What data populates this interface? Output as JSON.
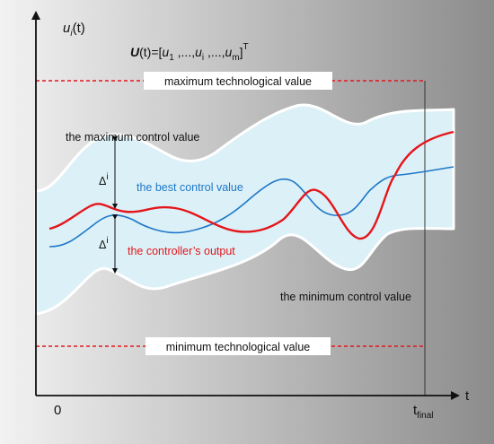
{
  "colors": {
    "background_gradient": [
      "#8c8c8c",
      "#f2f2f2"
    ],
    "band_fill": "#dcf0f7",
    "band_edge": "#ffffff",
    "limit_line": "#e4161b",
    "best_control": "#1f78c8",
    "controller_output": "#e4161b"
  },
  "axes": {
    "y_label_main": "u",
    "y_label_sub": "i",
    "y_label_arg": "(t)",
    "x_label": "t",
    "origin_label": "0",
    "t_final_main": "t",
    "t_final_sub": "final"
  },
  "equation": {
    "lhs_bold": "U",
    "lhs_rest": "(t)=[",
    "u1": "u",
    "u1_sub": "1",
    "sep1": " ,...,",
    "ui": "u",
    "ui_sub": "i",
    "sep2": " ,...,",
    "um": "u",
    "um_sub": "m",
    "close": "]",
    "transpose": "T"
  },
  "labels": {
    "max_tech": "maximum technological value",
    "min_tech": "minimum technological value",
    "max_control": "the maximum control value",
    "min_control": "the minimum control value",
    "best_control": "the best control value",
    "controller_output": "the controller’s output",
    "delta_upper": "Δ",
    "delta_upper_sup": "i",
    "delta_lower": "Δ",
    "delta_lower_sup": "i"
  }
}
